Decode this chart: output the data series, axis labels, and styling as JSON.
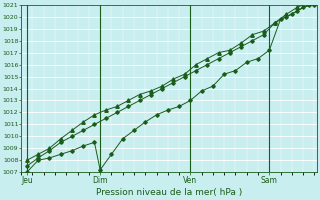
{
  "xlabel": "Pression niveau de la mer( hPa )",
  "bg_color": "#c8eef0",
  "grid_color": "#ffffff",
  "line_color": "#1a5c1a",
  "ylim": [
    1007,
    1021
  ],
  "xlim": [
    0,
    10.5
  ],
  "yticks": [
    1007,
    1008,
    1009,
    1010,
    1011,
    1012,
    1013,
    1014,
    1015,
    1016,
    1017,
    1018,
    1019,
    1020,
    1021
  ],
  "day_labels": [
    "Jeu",
    "Dim",
    "Ven",
    "Sam"
  ],
  "day_positions": [
    0.2,
    2.8,
    6.0,
    8.8
  ],
  "line1_x": [
    0.2,
    0.6,
    1.0,
    1.4,
    1.8,
    2.2,
    2.6,
    2.8,
    3.2,
    3.6,
    4.0,
    4.4,
    4.8,
    5.2,
    5.6,
    6.0,
    6.4,
    6.8,
    7.2,
    7.6,
    8.0,
    8.4,
    8.8,
    9.2,
    9.6,
    10.0,
    10.4
  ],
  "line1_y": [
    1007.0,
    1008.0,
    1008.2,
    1008.5,
    1008.8,
    1009.2,
    1009.5,
    1007.2,
    1008.5,
    1009.8,
    1010.5,
    1011.2,
    1011.8,
    1012.2,
    1012.5,
    1013.0,
    1013.8,
    1014.2,
    1015.2,
    1015.5,
    1016.2,
    1016.5,
    1017.2,
    1019.8,
    1020.2,
    1020.8,
    1021.0
  ],
  "line2_x": [
    0.2,
    0.6,
    1.0,
    1.4,
    1.8,
    2.2,
    2.6,
    3.0,
    3.4,
    3.8,
    4.2,
    4.6,
    5.0,
    5.4,
    5.8,
    6.2,
    6.6,
    7.0,
    7.4,
    7.8,
    8.2,
    8.6,
    9.0,
    9.4,
    9.8,
    10.2,
    10.5
  ],
  "line2_y": [
    1007.5,
    1008.2,
    1008.8,
    1009.5,
    1010.0,
    1010.5,
    1011.0,
    1011.5,
    1012.0,
    1012.5,
    1013.0,
    1013.5,
    1014.0,
    1014.5,
    1015.0,
    1015.5,
    1016.0,
    1016.5,
    1017.0,
    1017.5,
    1018.0,
    1018.5,
    1019.5,
    1020.0,
    1020.5,
    1021.0,
    1021.2
  ],
  "line3_x": [
    0.2,
    0.6,
    1.0,
    1.4,
    1.8,
    2.2,
    2.6,
    3.0,
    3.4,
    3.8,
    4.2,
    4.6,
    5.0,
    5.4,
    5.8,
    6.2,
    6.6,
    7.0,
    7.4,
    7.8,
    8.2,
    8.6,
    9.0,
    9.4,
    9.8,
    10.2,
    10.5
  ],
  "line3_y": [
    1008.0,
    1008.5,
    1009.0,
    1009.8,
    1010.5,
    1011.2,
    1011.8,
    1012.2,
    1012.5,
    1013.0,
    1013.5,
    1013.8,
    1014.2,
    1014.8,
    1015.2,
    1016.0,
    1016.5,
    1017.0,
    1017.2,
    1017.8,
    1018.5,
    1018.8,
    1019.5,
    1020.2,
    1020.8,
    1021.2,
    1021.2
  ]
}
